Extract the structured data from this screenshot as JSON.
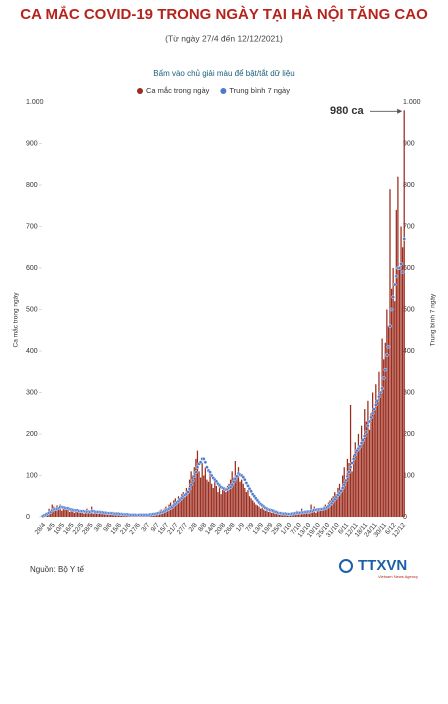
{
  "chart_data": {
    "type": "combo",
    "title": "CA MẮC COVID-19 TRONG NGÀY TẠI HÀ NỘI TĂNG CAO",
    "subtitle": "(Từ ngày 27/4 đến 12/12/2021)",
    "hint": "Bấm vào chủ giải màu để bật/tắt dữ liệu",
    "y_label": "Ca mắc trong ngày",
    "y2_label": "Trung bình 7 ngày",
    "annotation": "980 ca",
    "source": "Nguồn: Bộ Y tế",
    "logo": "TTXVN",
    "logo_sub": "Vietnam News Agency",
    "categories": [
      null,
      "28/4",
      null,
      null,
      null,
      null,
      null,
      "4/5",
      null,
      null,
      null,
      null,
      null,
      "10/5",
      null,
      null,
      null,
      null,
      null,
      "16/5",
      null,
      null,
      null,
      null,
      null,
      "22/5",
      null,
      null,
      null,
      null,
      null,
      "28/5",
      null,
      null,
      null,
      null,
      null,
      "3/6",
      null,
      null,
      null,
      null,
      null,
      "9/6",
      null,
      null,
      null,
      null,
      null,
      "15/6",
      null,
      null,
      null,
      null,
      null,
      "21/6",
      null,
      null,
      null,
      null,
      null,
      "27/6",
      null,
      null,
      null,
      null,
      null,
      "3/7",
      null,
      null,
      null,
      null,
      null,
      "9/7",
      null,
      null,
      null,
      null,
      null,
      "15/7",
      null,
      null,
      null,
      null,
      null,
      "21/7",
      null,
      null,
      null,
      null,
      null,
      "27/7",
      null,
      null,
      null,
      null,
      null,
      "2/8",
      null,
      null,
      null,
      null,
      null,
      "8/8",
      null,
      null,
      null,
      null,
      null,
      "14/8",
      null,
      null,
      null,
      null,
      null,
      "20/8",
      null,
      null,
      null,
      null,
      null,
      "26/8",
      null,
      null,
      null,
      null,
      null,
      "1/9",
      null,
      null,
      null,
      null,
      null,
      "7/9",
      null,
      null,
      null,
      null,
      null,
      "13/9",
      null,
      null,
      null,
      null,
      null,
      "19/9",
      null,
      null,
      null,
      null,
      null,
      "25/9",
      null,
      null,
      null,
      null,
      null,
      "1/10",
      null,
      null,
      null,
      null,
      null,
      "7/10",
      null,
      null,
      null,
      null,
      null,
      "13/10",
      null,
      null,
      null,
      null,
      null,
      "19/10",
      null,
      null,
      null,
      null,
      null,
      "25/10",
      null,
      null,
      null,
      null,
      null,
      "31/10",
      null,
      null,
      null,
      null,
      null,
      "6/11",
      null,
      null,
      null,
      null,
      null,
      "12/11",
      null,
      null,
      null,
      null,
      null,
      "18/11",
      null,
      null,
      null,
      null,
      null,
      "24/11",
      null,
      null,
      null,
      null,
      null,
      "30/11",
      null,
      null,
      null,
      null,
      null,
      "6/12",
      null,
      null,
      null,
      null,
      null,
      "12/12"
    ],
    "series": [
      {
        "name": "Ca mắc trong ngày",
        "type": "bar",
        "color": "#9b2d1f",
        "values": [
          2,
          5,
          8,
          12,
          20,
          15,
          30,
          25,
          18,
          28,
          22,
          30,
          15,
          20,
          25,
          18,
          22,
          12,
          15,
          20,
          10,
          14,
          18,
          12,
          10,
          15,
          8,
          12,
          20,
          14,
          10,
          25,
          8,
          12,
          10,
          8,
          12,
          15,
          10,
          8,
          6,
          10,
          12,
          8,
          5,
          6,
          8,
          5,
          10,
          6,
          4,
          8,
          5,
          6,
          4,
          5,
          3,
          6,
          4,
          5,
          3,
          4,
          6,
          5,
          4,
          5,
          8,
          6,
          4,
          7,
          10,
          8,
          12,
          10,
          15,
          18,
          12,
          20,
          25,
          22,
          30,
          35,
          28,
          40,
          45,
          38,
          50,
          42,
          55,
          60,
          48,
          70,
          65,
          90,
          110,
          100,
          120,
          140,
          160,
          110,
          95,
          130,
          100,
          120,
          90,
          85,
          110,
          80,
          70,
          90,
          75,
          60,
          80,
          55,
          65,
          70,
          60,
          75,
          80,
          90,
          110,
          95,
          135,
          100,
          120,
          85,
          90,
          80,
          70,
          60,
          65,
          50,
          45,
          40,
          35,
          30,
          28,
          25,
          20,
          22,
          18,
          15,
          20,
          12,
          15,
          10,
          12,
          8,
          10,
          6,
          12,
          8,
          5,
          10,
          7,
          6,
          8,
          10,
          8,
          12,
          6,
          15,
          10,
          8,
          20,
          12,
          10,
          15,
          12,
          8,
          30,
          18,
          25,
          10,
          20,
          15,
          22,
          18,
          25,
          30,
          20,
          35,
          40,
          45,
          50,
          60,
          55,
          70,
          80,
          65,
          100,
          120,
          90,
          140,
          130,
          270,
          110,
          150,
          180,
          160,
          200,
          170,
          220,
          190,
          260,
          230,
          280,
          210,
          250,
          300,
          260,
          320,
          280,
          350,
          300,
          430,
          380,
          420,
          500,
          460,
          790,
          550,
          600,
          520,
          740,
          820,
          600,
          700,
          650,
          980
        ]
      },
      {
        "name": "Trung bình 7 ngày",
        "type": "dots",
        "axis": "y2",
        "color": "#4a7bd0",
        "values": [
          2,
          4,
          6,
          8,
          10,
          12,
          16,
          18,
          19,
          20,
          21,
          24,
          24,
          23,
          22,
          21,
          21,
          19,
          18,
          17,
          16,
          16,
          16,
          14,
          14,
          14,
          14,
          13,
          13,
          13,
          12,
          14,
          14,
          13,
          12,
          12,
          12,
          11,
          11,
          10,
          10,
          9,
          9,
          9,
          9,
          8,
          8,
          8,
          8,
          7,
          7,
          6,
          6,
          6,
          6,
          5,
          5,
          5,
          5,
          5,
          4,
          5,
          5,
          5,
          5,
          5,
          5,
          5,
          6,
          6,
          7,
          7,
          8,
          9,
          10,
          11,
          12,
          14,
          16,
          18,
          20,
          22,
          24,
          28,
          32,
          35,
          38,
          42,
          46,
          50,
          53,
          56,
          60,
          68,
          78,
          88,
          98,
          108,
          120,
          128,
          132,
          140,
          140,
          132,
          120,
          112,
          108,
          100,
          94,
          90,
          86,
          80,
          76,
          72,
          70,
          68,
          66,
          67,
          70,
          72,
          78,
          85,
          92,
          98,
          105,
          102,
          100,
          96,
          90,
          82,
          75,
          68,
          62,
          55,
          50,
          45,
          40,
          35,
          31,
          28,
          25,
          22,
          20,
          18,
          17,
          16,
          15,
          13,
          12,
          10,
          9,
          9,
          8,
          8,
          8,
          7,
          7,
          7,
          8,
          8,
          9,
          10,
          10,
          10,
          11,
          11,
          12,
          12,
          13,
          13,
          14,
          15,
          17,
          17,
          18,
          18,
          19,
          19,
          20,
          21,
          23,
          26,
          30,
          33,
          38,
          43,
          48,
          53,
          58,
          63,
          70,
          78,
          88,
          98,
          108,
          120,
          130,
          140,
          150,
          160,
          165,
          170,
          178,
          185,
          195,
          205,
          220,
          230,
          240,
          250,
          260,
          270,
          280,
          290,
          300,
          310,
          335,
          355,
          390,
          410,
          460,
          500,
          530,
          560,
          580,
          600,
          600,
          610,
          590,
          670
        ]
      }
    ],
    "ylim": [
      0,
      1000
    ],
    "yticks": [
      0,
      100,
      200,
      300,
      400,
      500,
      600,
      700,
      800,
      900,
      {
        "value": 1000,
        "label": "1.000"
      }
    ],
    "y2lim": [
      0,
      1000
    ],
    "y2ticks": [
      0,
      100,
      200,
      300,
      400,
      500,
      600,
      700,
      800,
      900,
      {
        "value": 1000,
        "label": "1.000"
      }
    ],
    "grid": false
  }
}
